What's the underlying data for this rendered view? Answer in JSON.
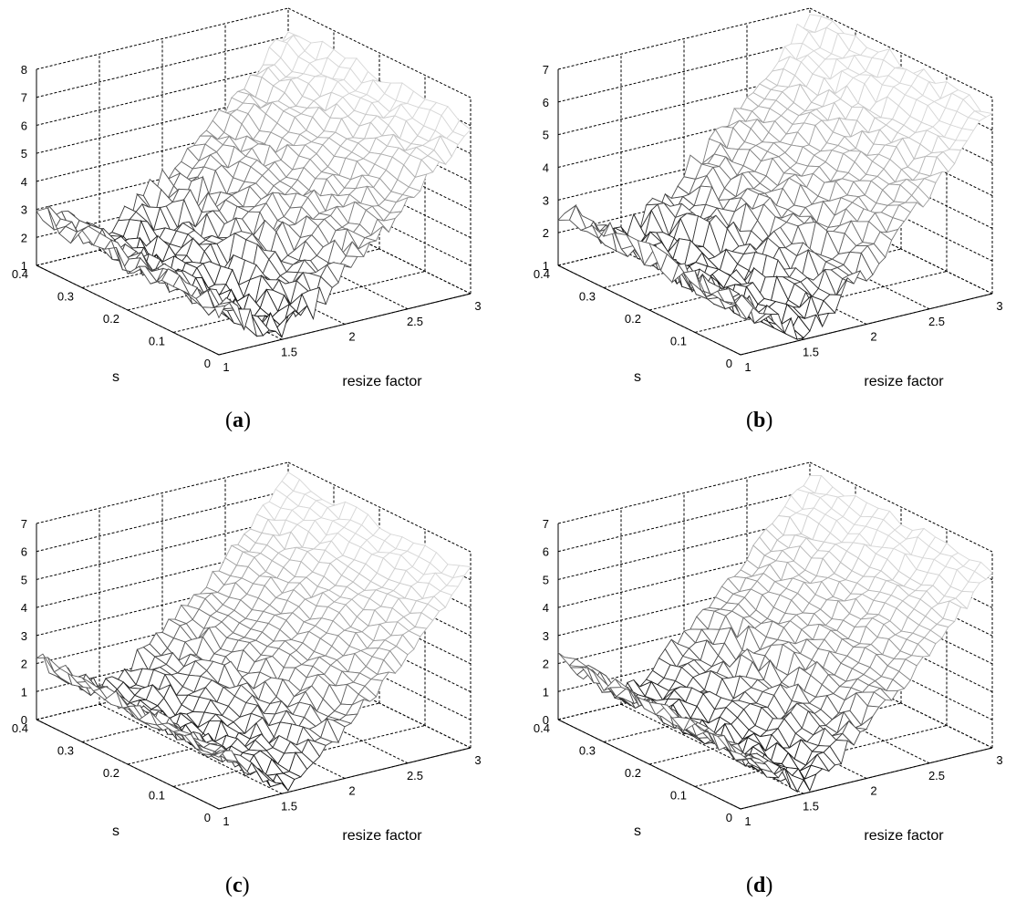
{
  "chart_data": [
    {
      "type": "surface",
      "panel_label": "a",
      "xlabel": "resize factor",
      "ylabel": "s",
      "zlabel": "",
      "xlim": [
        1,
        3
      ],
      "ylim": [
        0,
        0.4
      ],
      "zlim": [
        1,
        8
      ],
      "x_ticks": [
        "1",
        "1.5",
        "2",
        "2.5",
        "3"
      ],
      "y_ticks": [
        "0",
        "0.1",
        "0.2",
        "0.3",
        "0.4"
      ],
      "z_ticks": [
        "1",
        "2",
        "3",
        "4",
        "5",
        "6",
        "7",
        "8"
      ],
      "grid": true,
      "surface": {
        "z_min": 1.3,
        "z_max": 7.0,
        "x_at_min": 1.5,
        "z_at_x1": 2.6,
        "noise": 0.35,
        "s_effect": 0.3
      }
    },
    {
      "type": "surface",
      "panel_label": "b",
      "xlabel": "resize factor",
      "ylabel": "s",
      "zlabel": "",
      "xlim": [
        1,
        3
      ],
      "ylim": [
        0,
        0.4
      ],
      "zlim": [
        1,
        7
      ],
      "x_ticks": [
        "1",
        "1.5",
        "2",
        "2.5",
        "3"
      ],
      "y_ticks": [
        "0",
        "0.1",
        "0.2",
        "0.3",
        "0.4"
      ],
      "z_ticks": [
        "1",
        "2",
        "3",
        "4",
        "5",
        "6",
        "7"
      ],
      "grid": true,
      "surface": {
        "z_min": 1.2,
        "z_max": 6.6,
        "x_at_min": 1.45,
        "z_at_x1": 2.5,
        "noise": 0.3,
        "s_effect": 0.25
      }
    },
    {
      "type": "surface",
      "panel_label": "c",
      "xlabel": "resize factor",
      "ylabel": "s",
      "zlabel": "",
      "xlim": [
        1,
        3
      ],
      "ylim": [
        0,
        0.4
      ],
      "zlim": [
        0,
        7
      ],
      "x_ticks": [
        "1",
        "1.5",
        "2",
        "2.5",
        "3"
      ],
      "y_ticks": [
        "0",
        "0.1",
        "0.2",
        "0.3",
        "0.4"
      ],
      "z_ticks": [
        "0",
        "1",
        "2",
        "3",
        "4",
        "5",
        "6",
        "7"
      ],
      "grid": true,
      "surface": {
        "z_min": 0.3,
        "z_max": 6.3,
        "x_at_min": 1.5,
        "z_at_x1": 2.0,
        "noise": 0.25,
        "s_effect": 0.2
      }
    },
    {
      "type": "surface",
      "panel_label": "d",
      "xlabel": "resize factor",
      "ylabel": "s",
      "zlabel": "",
      "xlim": [
        1,
        3
      ],
      "ylim": [
        0,
        0.4
      ],
      "zlim": [
        0,
        7
      ],
      "x_ticks": [
        "1",
        "1.5",
        "2",
        "2.5",
        "3"
      ],
      "y_ticks": [
        "0",
        "0.1",
        "0.2",
        "0.3",
        "0.4"
      ],
      "z_ticks": [
        "0",
        "1",
        "2",
        "3",
        "4",
        "5",
        "6",
        "7"
      ],
      "grid": true,
      "surface": {
        "z_min": 0.2,
        "z_max": 6.4,
        "x_at_min": 1.5,
        "z_at_x1": 2.0,
        "noise": 0.25,
        "s_effect": 0.2
      }
    }
  ],
  "colors": {
    "axis": "#000000",
    "mesh_light": "#d8d8d8",
    "mesh_dark": "#000000",
    "face": "#ffffff"
  }
}
